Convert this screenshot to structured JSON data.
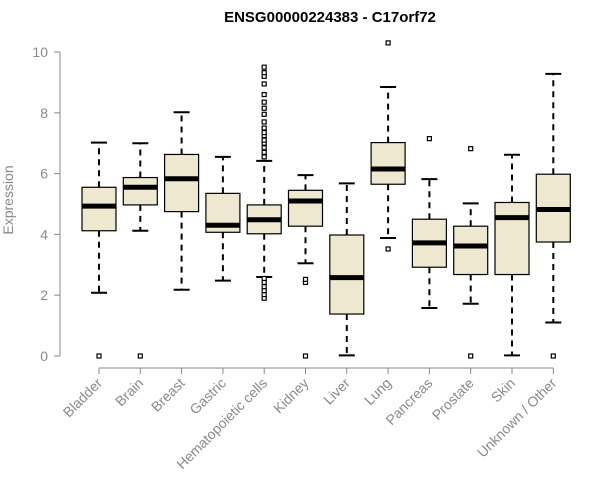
{
  "chart_data": {
    "type": "boxplot",
    "title": "ENSG00000224383 - C17orf72",
    "xlabel": "",
    "ylabel": "Expression",
    "ylim": [
      0,
      10
    ],
    "yticks": [
      0,
      2,
      4,
      6,
      8,
      10
    ],
    "grid": false,
    "box_fill": "#efe8d0",
    "categories": [
      "Bladder",
      "Brain",
      "Breast",
      "Gastric",
      "Hematopoietic cells",
      "Kidney",
      "Liver",
      "Lung",
      "Pancreas",
      "Prostate",
      "Skin",
      "Unknown / Other"
    ],
    "boxes": [
      {
        "name": "Bladder",
        "whisker_low": 2.08,
        "q1": 4.12,
        "median": 4.93,
        "q3": 5.55,
        "whisker_high": 7.02,
        "outliers": [
          0.0
        ]
      },
      {
        "name": "Brain",
        "whisker_low": 4.12,
        "q1": 4.97,
        "median": 5.55,
        "q3": 5.87,
        "whisker_high": 7.0,
        "outliers": [
          0.0
        ]
      },
      {
        "name": "Breast",
        "whisker_low": 2.18,
        "q1": 4.75,
        "median": 5.83,
        "q3": 6.63,
        "whisker_high": 8.02,
        "outliers": []
      },
      {
        "name": "Gastric",
        "whisker_low": 2.48,
        "q1": 4.07,
        "median": 4.3,
        "q3": 5.35,
        "whisker_high": 6.55,
        "outliers": []
      },
      {
        "name": "Hematopoietic cells",
        "whisker_low": 2.6,
        "q1": 4.02,
        "median": 4.48,
        "q3": 4.97,
        "whisker_high": 6.42,
        "outliers": [
          1.9,
          2.02,
          2.15,
          2.28,
          2.42,
          2.55,
          6.55,
          6.7,
          6.85,
          7.0,
          7.1,
          7.25,
          7.35,
          7.5,
          7.7,
          7.95,
          8.15,
          8.35,
          8.6,
          8.95,
          9.2,
          9.32,
          9.5
        ]
      },
      {
        "name": "Kidney",
        "whisker_low": 3.05,
        "q1": 4.27,
        "median": 5.1,
        "q3": 5.45,
        "whisker_high": 5.95,
        "outliers": [
          0.0,
          2.42,
          2.52
        ]
      },
      {
        "name": "Liver",
        "whisker_low": 0.02,
        "q1": 1.38,
        "median": 2.58,
        "q3": 3.98,
        "whisker_high": 5.68,
        "outliers": []
      },
      {
        "name": "Lung",
        "whisker_low": 3.88,
        "q1": 5.65,
        "median": 6.15,
        "q3": 7.02,
        "whisker_high": 8.85,
        "outliers": [
          3.52,
          10.3
        ]
      },
      {
        "name": "Pancreas",
        "whisker_low": 1.58,
        "q1": 2.92,
        "median": 3.72,
        "q3": 4.5,
        "whisker_high": 5.82,
        "outliers": [
          7.15
        ]
      },
      {
        "name": "Prostate",
        "whisker_low": 1.72,
        "q1": 2.68,
        "median": 3.62,
        "q3": 4.27,
        "whisker_high": 5.02,
        "outliers": [
          0.0,
          6.82
        ]
      },
      {
        "name": "Skin",
        "whisker_low": 0.02,
        "q1": 2.68,
        "median": 4.55,
        "q3": 5.05,
        "whisker_high": 6.62,
        "outliers": []
      },
      {
        "name": "Unknown / Other",
        "whisker_low": 1.1,
        "q1": 3.75,
        "median": 4.82,
        "q3": 5.98,
        "whisker_high": 9.28,
        "outliers": [
          0.0
        ]
      }
    ]
  }
}
